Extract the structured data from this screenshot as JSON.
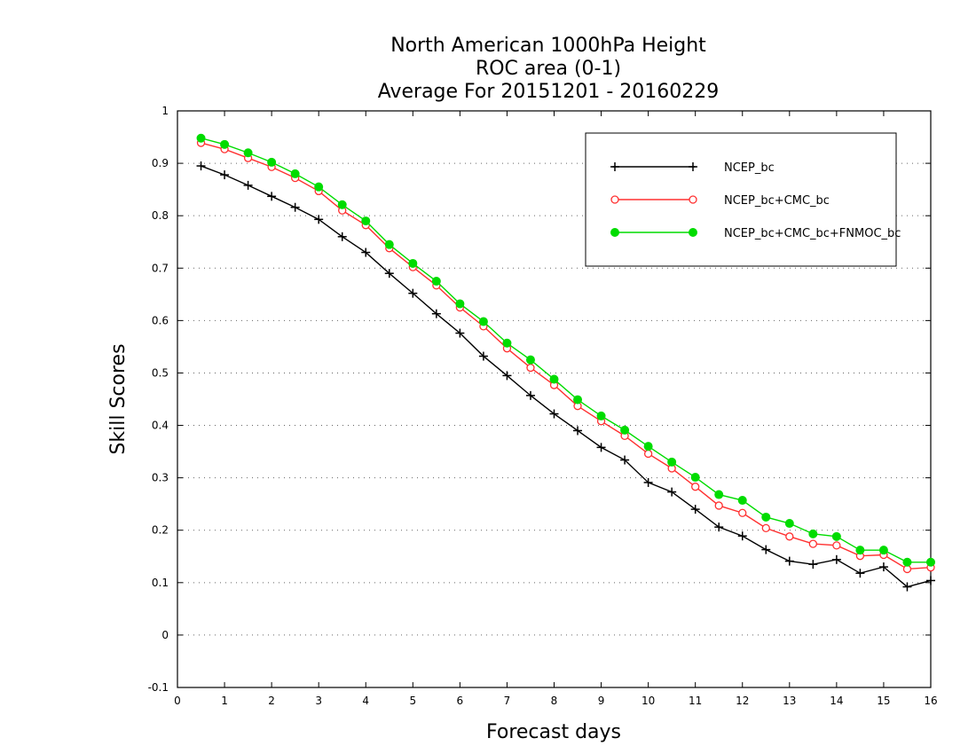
{
  "chart_data": {
    "type": "line",
    "title": [
      "North American 1000hPa Height",
      "ROC area (0-1)",
      "Average For 20151201 - 20160229"
    ],
    "xlabel": "Forecast days",
    "ylabel": "Skill Scores",
    "xlim": [
      0,
      16
    ],
    "ylim": [
      -0.1,
      1
    ],
    "x_ticks": [
      0,
      1,
      2,
      3,
      4,
      5,
      6,
      7,
      8,
      9,
      10,
      11,
      12,
      13,
      14,
      15,
      16
    ],
    "x_tick_labels": [
      "0",
      "1",
      "2",
      "3",
      "4",
      "5",
      "6",
      "7",
      "8",
      "9",
      "10",
      "11",
      "12",
      "13",
      "14",
      "15",
      "16"
    ],
    "y_ticks": [
      -0.1,
      0,
      0.1,
      0.2,
      0.3,
      0.4,
      0.5,
      0.6,
      0.7,
      0.8,
      0.9,
      1
    ],
    "y_tick_labels": [
      "-0.1",
      "0",
      "0.1",
      "0.2",
      "0.3",
      "0.4",
      "0.5",
      "0.6",
      "0.7",
      "0.8",
      "0.9",
      "1"
    ],
    "grid": "horizontal-dotted",
    "legend_position": "top-right",
    "x": [
      0.5,
      1,
      1.5,
      2,
      2.5,
      3,
      3.5,
      4,
      4.5,
      5,
      5.5,
      6,
      6.5,
      7,
      7.5,
      8,
      8.5,
      9,
      9.5,
      10,
      10.5,
      11,
      11.5,
      12,
      12.5,
      13,
      13.5,
      14,
      14.5,
      15,
      15.5,
      16
    ],
    "series": [
      {
        "name": "NCEP_bc",
        "color": "#000000",
        "marker": "plus",
        "values": [
          0.895,
          0.878,
          0.858,
          0.837,
          0.816,
          0.793,
          0.76,
          0.73,
          0.69,
          0.652,
          0.613,
          0.576,
          0.532,
          0.495,
          0.457,
          0.422,
          0.39,
          0.358,
          0.334,
          0.291,
          0.273,
          0.24,
          0.206,
          0.189,
          0.163,
          0.141,
          0.135,
          0.144,
          0.118,
          0.13,
          0.092,
          0.104
        ]
      },
      {
        "name": "NCEP_bc+CMC_bc",
        "color": "#ff3030",
        "marker": "open-circle",
        "values": [
          0.939,
          0.927,
          0.91,
          0.893,
          0.872,
          0.847,
          0.81,
          0.782,
          0.738,
          0.702,
          0.667,
          0.625,
          0.589,
          0.547,
          0.51,
          0.477,
          0.437,
          0.408,
          0.38,
          0.346,
          0.318,
          0.283,
          0.247,
          0.233,
          0.204,
          0.188,
          0.174,
          0.171,
          0.151,
          0.153,
          0.126,
          0.129
        ]
      },
      {
        "name": "NCEP_bc+CMC_bc+FNMOC_bc",
        "color": "#00dc00",
        "marker": "filled-circle",
        "values": [
          0.948,
          0.936,
          0.92,
          0.902,
          0.88,
          0.855,
          0.821,
          0.79,
          0.745,
          0.709,
          0.675,
          0.632,
          0.598,
          0.557,
          0.525,
          0.488,
          0.449,
          0.418,
          0.391,
          0.36,
          0.33,
          0.301,
          0.268,
          0.257,
          0.225,
          0.213,
          0.193,
          0.188,
          0.162,
          0.162,
          0.139,
          0.139
        ]
      }
    ]
  }
}
